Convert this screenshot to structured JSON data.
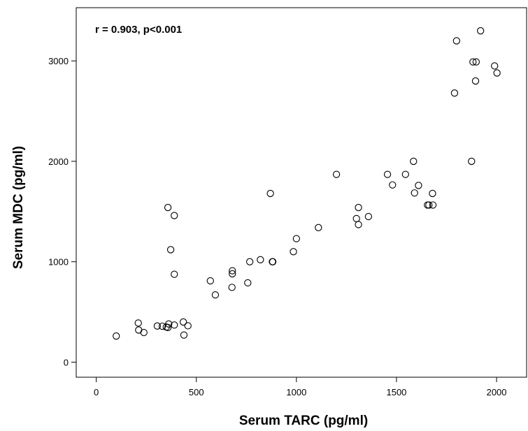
{
  "chart_data": {
    "type": "scatter",
    "title": "",
    "annotation": "r = 0.903, p<0.001",
    "xlabel": "Serum TARC (pg/ml)",
    "ylabel": "Serum MDC (pg/ml)",
    "xlim": [
      -100,
      2150
    ],
    "ylim": [
      -150,
      3530
    ],
    "x_ticks": [
      0,
      500,
      1000,
      1500,
      2000
    ],
    "x_tick_labels": [
      "0",
      "500",
      "1000",
      "1500",
      "2000"
    ],
    "y_ticks": [
      0,
      1000,
      2000,
      3000
    ],
    "y_tick_labels": [
      "0",
      "1000",
      "2000",
      "3000"
    ],
    "grid": false,
    "marker": "open-circle",
    "colors": {
      "marker": "#000000",
      "axis": "#000000",
      "background": "#ffffff"
    },
    "points": [
      {
        "x": 100,
        "y": 260
      },
      {
        "x": 210,
        "y": 390
      },
      {
        "x": 212,
        "y": 320
      },
      {
        "x": 238,
        "y": 295
      },
      {
        "x": 305,
        "y": 360
      },
      {
        "x": 330,
        "y": 358
      },
      {
        "x": 350,
        "y": 350
      },
      {
        "x": 358,
        "y": 345
      },
      {
        "x": 362,
        "y": 380
      },
      {
        "x": 390,
        "y": 370
      },
      {
        "x": 435,
        "y": 400
      },
      {
        "x": 438,
        "y": 270
      },
      {
        "x": 458,
        "y": 362
      },
      {
        "x": 358,
        "y": 1540
      },
      {
        "x": 390,
        "y": 1460
      },
      {
        "x": 372,
        "y": 1120
      },
      {
        "x": 390,
        "y": 875
      },
      {
        "x": 570,
        "y": 810
      },
      {
        "x": 595,
        "y": 670
      },
      {
        "x": 680,
        "y": 910
      },
      {
        "x": 680,
        "y": 880
      },
      {
        "x": 678,
        "y": 745
      },
      {
        "x": 757,
        "y": 790
      },
      {
        "x": 767,
        "y": 1000
      },
      {
        "x": 820,
        "y": 1020
      },
      {
        "x": 870,
        "y": 1680
      },
      {
        "x": 880,
        "y": 1000
      },
      {
        "x": 882,
        "y": 1000
      },
      {
        "x": 985,
        "y": 1100
      },
      {
        "x": 1000,
        "y": 1230
      },
      {
        "x": 1110,
        "y": 1340
      },
      {
        "x": 1200,
        "y": 1870
      },
      {
        "x": 1300,
        "y": 1430
      },
      {
        "x": 1310,
        "y": 1540
      },
      {
        "x": 1310,
        "y": 1370
      },
      {
        "x": 1360,
        "y": 1450
      },
      {
        "x": 1455,
        "y": 1870
      },
      {
        "x": 1480,
        "y": 1765
      },
      {
        "x": 1545,
        "y": 1870
      },
      {
        "x": 1585,
        "y": 2000
      },
      {
        "x": 1590,
        "y": 1685
      },
      {
        "x": 1610,
        "y": 1760
      },
      {
        "x": 1655,
        "y": 1565
      },
      {
        "x": 1662,
        "y": 1565
      },
      {
        "x": 1680,
        "y": 1680
      },
      {
        "x": 1682,
        "y": 1565
      },
      {
        "x": 1790,
        "y": 2680
      },
      {
        "x": 1800,
        "y": 3200
      },
      {
        "x": 1875,
        "y": 2000
      },
      {
        "x": 1882,
        "y": 2990
      },
      {
        "x": 1895,
        "y": 2800
      },
      {
        "x": 1898,
        "y": 2990
      },
      {
        "x": 1920,
        "y": 3300
      },
      {
        "x": 1990,
        "y": 2950
      },
      {
        "x": 2002,
        "y": 2880
      }
    ]
  }
}
